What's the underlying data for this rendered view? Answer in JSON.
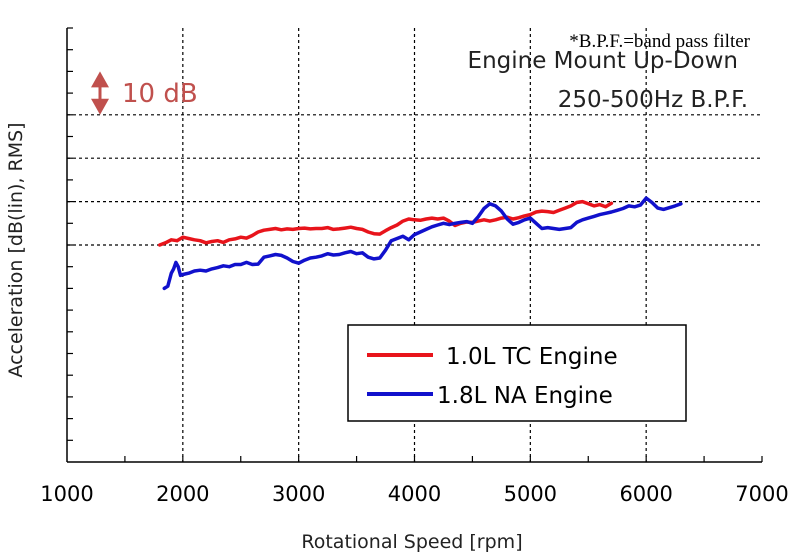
{
  "chart_data": {
    "type": "line",
    "note": "*B.P.F.=band pass filter",
    "title_line1": "Engine Mount Up-Down",
    "title_line2": "250-500Hz B.P.F.",
    "xlabel": "Rotational Speed [rpm]",
    "ylabel": "Acceleration [dB(lin), RMS]",
    "xlim": [
      1000,
      7000
    ],
    "xticks": [
      1000,
      2000,
      3000,
      4000,
      5000,
      6000,
      7000
    ],
    "ylim": [
      -5,
      5
    ],
    "y_gridlines": [
      0,
      1,
      2,
      3
    ],
    "scale_bar_label": "10 dB",
    "scale_bar_color": "#c0504d",
    "grid": true,
    "legend_position": "bottom-right",
    "series": [
      {
        "name": "1.0L TC Engine",
        "color": "#e8141b",
        "x": [
          1800,
          1850,
          1900,
          1950,
          2000,
          2050,
          2100,
          2150,
          2200,
          2250,
          2300,
          2350,
          2400,
          2450,
          2500,
          2550,
          2600,
          2650,
          2700,
          2750,
          2800,
          2850,
          2900,
          2950,
          3000,
          3050,
          3100,
          3150,
          3200,
          3250,
          3300,
          3350,
          3400,
          3450,
          3500,
          3550,
          3600,
          3650,
          3700,
          3750,
          3800,
          3850,
          3900,
          3950,
          4000,
          4050,
          4100,
          4150,
          4200,
          4250,
          4300,
          4350,
          4400,
          4450,
          4500,
          4550,
          4600,
          4650,
          4700,
          4750,
          4800,
          4850,
          4900,
          4950,
          5000,
          5050,
          5100,
          5150,
          5200,
          5250,
          5300,
          5350,
          5400,
          5450,
          5500,
          5550,
          5600,
          5650,
          5700
        ],
        "y": [
          -0.0,
          0.05,
          0.12,
          0.1,
          0.18,
          0.15,
          0.12,
          0.1,
          0.05,
          0.08,
          0.1,
          0.06,
          0.12,
          0.14,
          0.18,
          0.16,
          0.22,
          0.3,
          0.34,
          0.36,
          0.38,
          0.35,
          0.37,
          0.36,
          0.38,
          0.39,
          0.37,
          0.38,
          0.38,
          0.4,
          0.36,
          0.37,
          0.39,
          0.41,
          0.38,
          0.36,
          0.3,
          0.26,
          0.25,
          0.33,
          0.4,
          0.46,
          0.55,
          0.6,
          0.58,
          0.57,
          0.6,
          0.62,
          0.6,
          0.62,
          0.55,
          0.45,
          0.5,
          0.53,
          0.52,
          0.55,
          0.58,
          0.55,
          0.58,
          0.62,
          0.64,
          0.6,
          0.63,
          0.67,
          0.7,
          0.76,
          0.78,
          0.77,
          0.75,
          0.8,
          0.85,
          0.9,
          0.98,
          1.0,
          0.95,
          0.9,
          0.93,
          0.88,
          0.96
        ]
      },
      {
        "name": "1.8L NA Engine",
        "color": "#1111cc",
        "x": [
          1840,
          1870,
          1900,
          1920,
          1940,
          1960,
          1980,
          2000,
          2050,
          2100,
          2150,
          2200,
          2250,
          2300,
          2350,
          2400,
          2450,
          2500,
          2550,
          2600,
          2650,
          2700,
          2750,
          2800,
          2850,
          2900,
          2950,
          3000,
          3050,
          3100,
          3150,
          3200,
          3250,
          3300,
          3350,
          3400,
          3450,
          3500,
          3550,
          3600,
          3650,
          3700,
          3750,
          3800,
          3850,
          3900,
          3950,
          4000,
          4050,
          4100,
          4150,
          4200,
          4250,
          4300,
          4350,
          4400,
          4450,
          4500,
          4550,
          4600,
          4650,
          4700,
          4750,
          4800,
          4850,
          4900,
          4950,
          5000,
          5050,
          5100,
          5150,
          5200,
          5250,
          5300,
          5350,
          5400,
          5450,
          5500,
          5550,
          5600,
          5650,
          5700,
          5750,
          5800,
          5850,
          5900,
          5950,
          6000,
          6050,
          6100,
          6150,
          6200,
          6250,
          6300
        ],
        "y": [
          -1.0,
          -0.95,
          -0.65,
          -0.55,
          -0.4,
          -0.5,
          -0.7,
          -0.68,
          -0.65,
          -0.6,
          -0.58,
          -0.6,
          -0.55,
          -0.52,
          -0.48,
          -0.5,
          -0.45,
          -0.45,
          -0.4,
          -0.45,
          -0.44,
          -0.28,
          -0.25,
          -0.22,
          -0.24,
          -0.3,
          -0.38,
          -0.42,
          -0.35,
          -0.3,
          -0.28,
          -0.25,
          -0.2,
          -0.23,
          -0.22,
          -0.18,
          -0.15,
          -0.2,
          -0.18,
          -0.28,
          -0.32,
          -0.3,
          -0.12,
          0.1,
          0.15,
          0.2,
          0.12,
          0.24,
          0.3,
          0.36,
          0.42,
          0.46,
          0.5,
          0.47,
          0.5,
          0.52,
          0.54,
          0.5,
          0.65,
          0.84,
          0.95,
          0.9,
          0.78,
          0.6,
          0.48,
          0.52,
          0.58,
          0.62,
          0.5,
          0.38,
          0.4,
          0.38,
          0.36,
          0.38,
          0.4,
          0.52,
          0.58,
          0.62,
          0.66,
          0.7,
          0.73,
          0.76,
          0.8,
          0.84,
          0.9,
          0.88,
          0.92,
          1.08,
          0.98,
          0.85,
          0.82,
          0.86,
          0.9,
          0.95
        ]
      }
    ]
  }
}
